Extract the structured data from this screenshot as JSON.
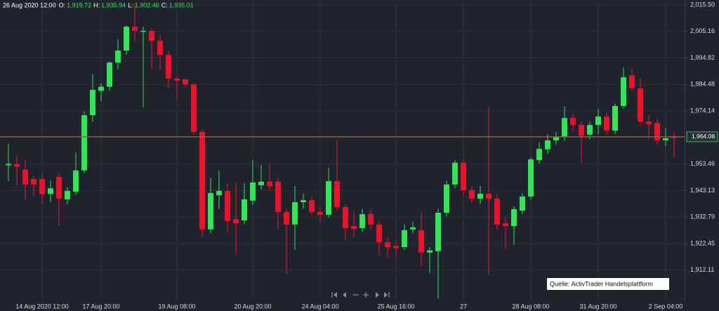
{
  "chart_data": {
    "type": "candlestick",
    "header": {
      "time": "26 Aug 2020 12:00",
      "fields": [
        {
          "key": "O:",
          "value": "1,919.72"
        },
        {
          "key": "H:",
          "value": "1,935.94"
        },
        {
          "key": "L:",
          "value": "1,902.46"
        },
        {
          "key": "C:",
          "value": "1,935.01"
        }
      ]
    },
    "source": "Quelle: ActivTrader Handelsplattform",
    "up_color": "#2ee653",
    "down_color": "#f0102a",
    "grid": true,
    "ylim": [
      1900.3,
      2017.4
    ],
    "yticks": [
      {
        "value": 2015.5,
        "label": "2,015.50"
      },
      {
        "value": 2005.16,
        "label": "2,005.16"
      },
      {
        "value": 1994.82,
        "label": "1,994.82"
      },
      {
        "value": 1984.48,
        "label": "1,984.48"
      },
      {
        "value": 1974.14,
        "label": "1,974.14"
      },
      {
        "value": 1953.46,
        "label": "1,953.46"
      },
      {
        "value": 1943.13,
        "label": "1,943.13"
      },
      {
        "value": 1932.79,
        "label": "1,932.79"
      },
      {
        "value": 1922.45,
        "label": "1,922.45"
      },
      {
        "value": 1912.11,
        "label": "1,912.11"
      }
    ],
    "last_price": {
      "value": 1964.08,
      "label": "1,964.08",
      "color": "#8a6440"
    },
    "categories": [
      null,
      null,
      null,
      null,
      "14 Aug 2020 12:00",
      null,
      null,
      null,
      null,
      null,
      null,
      "17 Aug 20:00",
      null,
      null,
      null,
      null,
      null,
      null,
      null,
      null,
      "19 Aug 08:00",
      null,
      null,
      null,
      null,
      null,
      null,
      null,
      null,
      "20 Aug 20:00",
      null,
      null,
      null,
      null,
      null,
      null,
      null,
      "24 Aug 04:00",
      null,
      null,
      null,
      null,
      null,
      null,
      null,
      null,
      "25 Aug 16:00",
      null,
      null,
      null,
      null,
      null,
      null,
      null,
      "27",
      null,
      null,
      null,
      null,
      null,
      null,
      null,
      "28 Aug 08:00",
      null,
      null,
      null,
      null,
      null,
      null,
      null,
      "31 Aug 20:00",
      null,
      null,
      null,
      null,
      null,
      null,
      null,
      "2 Sep 04:00",
      null
    ],
    "open": [
      1953.0,
      1953.5,
      1951.3,
      1947.6,
      1947.6,
      1941.8,
      1948.5,
      1939.7,
      1942.7,
      1951.0,
      1972.5,
      1982.0,
      1983.6,
      1993.0,
      1997.7,
      2007.0,
      2005.0,
      2005.4,
      2001.5,
      1996.0,
      1986.8,
      1986.5,
      1984.5,
      1966.0,
      1928.0,
      1941.3,
      1943.0,
      1932.0,
      1931.5,
      1939.2,
      1945.2,
      1946.6,
      1946.6,
      1934.8,
      1929.9,
      1938.6,
      1939.4,
      1934.8,
      1933.7,
      1946.8,
      1936.7,
      1929.3,
      1928.5,
      1934.0,
      1929.9,
      1923.0,
      1921.5,
      1921.1,
      1928.0,
      1927.7,
      1919.0,
      1919.5,
      1934.5,
      1945.5,
      1954.0,
      1943.3,
      1940.0,
      1941.9,
      1940.0,
      1930.4,
      1929.3,
      1935.3,
      1940.8,
      1955.0,
      1959.2,
      1962.7,
      1964.0,
      1971.4,
      1968.7,
      1964.9,
      1968.7,
      1972.0,
      1966.5,
      1976.1,
      1988.0,
      1983.0,
      1970.0,
      1969.5,
      1962.7,
      1964.2
    ],
    "high": [
      1961.3,
      1957.0,
      1955.0,
      1949.0,
      1949.5,
      1947.0,
      1950.0,
      1944.5,
      1958.0,
      1974.0,
      1988.5,
      1985.0,
      1993.5,
      2002.0,
      2007.5,
      2016.0,
      2007.0,
      2006.5,
      2004.0,
      1998.0,
      1988.0,
      1987.0,
      1985.0,
      1967.0,
      1948.0,
      1951.0,
      1946.0,
      1946.0,
      1946.0,
      1955.0,
      1953.0,
      1953.5,
      1948.0,
      1936.0,
      1945.0,
      1942.0,
      1941.0,
      1937.0,
      1952.0,
      1963.0,
      1938.0,
      1935.0,
      1936.0,
      1935.5,
      1931.0,
      1925.0,
      1924.0,
      1930.0,
      1931.0,
      1935.0,
      1921.0,
      1936.0,
      1947.0,
      1955.0,
      1955.5,
      1945.0,
      1945.0,
      1975.8,
      1941.5,
      1933.0,
      1937.0,
      1942.0,
      1956.0,
      1962.0,
      1965.0,
      1966.0,
      1976.0,
      1973.0,
      1970.0,
      1970.0,
      1975.0,
      1973.5,
      1977.0,
      1991.0,
      1990.5,
      1987.0,
      1972.5,
      1971.0,
      1967.5,
      1966.0
    ],
    "low": [
      1946.8,
      1945.0,
      1939.5,
      1941.0,
      1938.0,
      1938.5,
      1929.3,
      1938.0,
      1941.5,
      1950.0,
      1970.0,
      1978.0,
      1982.0,
      1990.5,
      1996.0,
      2001.0,
      1975.5,
      1990.0,
      1990.0,
      1983.0,
      1979.0,
      1983.5,
      1965.0,
      1925.0,
      1926.5,
      1936.0,
      1927.0,
      1918.0,
      1930.0,
      1937.5,
      1943.5,
      1943.0,
      1928.0,
      1910.5,
      1920.0,
      1936.0,
      1933.5,
      1931.0,
      1932.5,
      1935.5,
      1924.0,
      1925.0,
      1927.0,
      1928.0,
      1918.0,
      1917.0,
      1917.0,
      1920.0,
      1926.5,
      1914.0,
      1911.0,
      1901.0,
      1933.0,
      1944.0,
      1941.0,
      1938.5,
      1938.0,
      1910.0,
      1928.0,
      1920.0,
      1922.0,
      1934.0,
      1939.5,
      1953.5,
      1957.5,
      1961.0,
      1962.5,
      1966.0,
      1954.0,
      1963.0,
      1965.0,
      1965.0,
      1965.0,
      1975.0,
      1982.0,
      1968.5,
      1963.0,
      1961.5,
      1960.5,
      1956.0
    ],
    "close": [
      1953.5,
      1952.5,
      1945.5,
      1945.5,
      1941.8,
      1944.0,
      1940.0,
      1943.0,
      1951.0,
      1972.5,
      1982.4,
      1983.6,
      1993.0,
      1997.7,
      2007.0,
      2005.4,
      2005.4,
      2001.5,
      1996.0,
      1986.8,
      1986.0,
      1984.5,
      1966.0,
      1928.0,
      1942.2,
      1943.0,
      1931.3,
      1930.4,
      1939.7,
      1946.3,
      1946.6,
      1944.9,
      1934.8,
      1929.9,
      1938.6,
      1939.4,
      1934.8,
      1933.7,
      1946.8,
      1936.7,
      1928.5,
      1928.2,
      1933.9,
      1929.9,
      1923.0,
      1921.1,
      1920.7,
      1927.7,
      1928.8,
      1919.0,
      1919.8,
      1934.5,
      1945.5,
      1954.0,
      1943.3,
      1940.0,
      1941.9,
      1940.0,
      1929.9,
      1929.3,
      1935.9,
      1940.8,
      1955.3,
      1959.4,
      1962.7,
      1964.1,
      1971.4,
      1968.7,
      1964.6,
      1968.7,
      1972.0,
      1966.5,
      1976.1,
      1987.3,
      1983.0,
      1970.0,
      1969.0,
      1962.7,
      1963.5,
      1963.6
    ]
  }
}
